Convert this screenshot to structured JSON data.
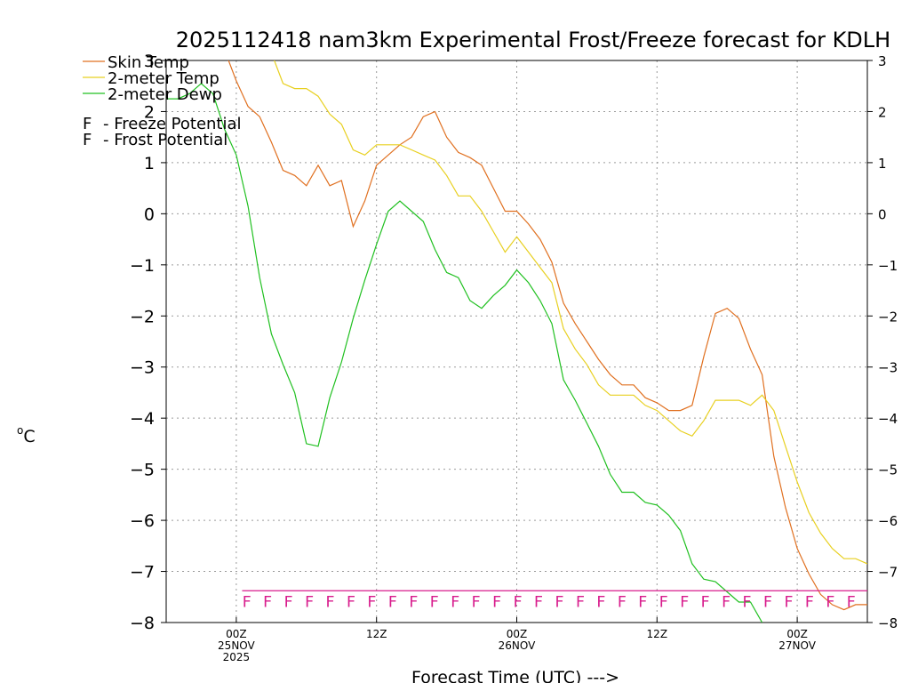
{
  "chart_data": {
    "type": "line",
    "title": "2025112418 nam3km Experimental Frost/Freeze forecast for KDLH",
    "ylabel": "oC",
    "xlabel": "Forecast Time (UTC) --->",
    "ylim": [
      -8,
      3
    ],
    "yticks": [
      -8,
      -7,
      -6,
      -5,
      -4,
      -3,
      -2,
      -1,
      0,
      1,
      2,
      3
    ],
    "xlim": [
      -6,
      54
    ],
    "xticks": [
      {
        "x": 0,
        "lines": [
          "00Z",
          "25NOV",
          "2025"
        ]
      },
      {
        "x": 12,
        "lines": [
          "12Z"
        ]
      },
      {
        "x": 24,
        "lines": [
          "00Z",
          "26NOV"
        ]
      },
      {
        "x": 36,
        "lines": [
          "12Z"
        ]
      },
      {
        "x": 48,
        "lines": [
          "00Z",
          "27NOV"
        ]
      }
    ],
    "series": [
      {
        "name": "Skin Temp",
        "color": "#e07020",
        "x": [
          -1,
          0,
          1,
          2,
          3,
          4,
          5,
          6,
          7,
          8,
          9,
          10,
          11,
          12,
          13,
          14,
          15,
          16,
          17,
          18,
          19,
          20,
          21,
          22,
          23,
          24,
          25,
          26,
          27,
          28,
          29,
          30,
          31,
          32,
          33,
          34,
          35,
          36,
          37,
          38,
          39,
          40,
          41,
          42,
          43,
          44,
          45,
          46,
          47,
          48,
          49,
          50,
          51,
          52,
          53,
          54
        ],
        "values": [
          3.2,
          2.6,
          2.1,
          1.9,
          1.4,
          0.85,
          0.75,
          0.55,
          0.95,
          0.55,
          0.65,
          -0.25,
          0.25,
          0.95,
          1.15,
          1.35,
          1.5,
          1.9,
          2.0,
          1.5,
          1.2,
          1.1,
          0.95,
          0.5,
          0.05,
          0.05,
          -0.2,
          -0.5,
          -0.95,
          -1.75,
          -2.15,
          -2.5,
          -2.85,
          -3.15,
          -3.35,
          -3.35,
          -3.6,
          -3.7,
          -3.85,
          -3.85,
          -3.75,
          -2.8,
          -1.95,
          -1.85,
          -2.05,
          -2.65,
          -3.15,
          -4.75,
          -5.75,
          -6.55,
          -7.05,
          -7.45,
          -7.65,
          -7.75,
          -7.65,
          -7.65
        ]
      },
      {
        "name": "2-meter Temp",
        "color": "#e8d020",
        "x": [
          2,
          3,
          4,
          5,
          6,
          7,
          8,
          9,
          10,
          11,
          12,
          13,
          14,
          15,
          16,
          17,
          18,
          19,
          20,
          21,
          22,
          23,
          24,
          25,
          26,
          27,
          28,
          29,
          30,
          31,
          32,
          33,
          34,
          35,
          36,
          37,
          38,
          39,
          40,
          41,
          42,
          43,
          44,
          45,
          46,
          47,
          48,
          49,
          50,
          51,
          52,
          53,
          54
        ],
        "values": [
          3.55,
          3.15,
          2.55,
          2.45,
          2.45,
          2.3,
          1.95,
          1.75,
          1.25,
          1.15,
          1.35,
          1.35,
          1.35,
          1.25,
          1.15,
          1.05,
          0.75,
          0.35,
          0.35,
          0.05,
          -0.35,
          -0.75,
          -0.45,
          -0.75,
          -1.05,
          -1.35,
          -2.25,
          -2.65,
          -2.95,
          -3.35,
          -3.55,
          -3.55,
          -3.55,
          -3.75,
          -3.85,
          -4.05,
          -4.25,
          -4.35,
          -4.05,
          -3.65,
          -3.65,
          -3.65,
          -3.75,
          -3.55,
          -3.85,
          -4.55,
          -5.25,
          -5.85,
          -6.25,
          -6.55,
          -6.75,
          -6.75,
          -6.85
        ]
      },
      {
        "name": "2-meter Dewp",
        "color": "#20c020",
        "x": [
          -6,
          -5,
          -4,
          -3,
          -2,
          -1,
          0,
          1,
          2,
          3,
          4,
          5,
          6,
          7,
          8,
          9,
          10,
          11,
          12,
          13,
          14,
          15,
          16,
          17,
          18,
          19,
          20,
          21,
          22,
          23,
          24,
          25,
          26,
          27,
          28,
          29,
          30,
          31,
          32,
          33,
          34,
          35,
          36,
          37,
          38,
          39,
          40,
          41,
          42,
          43,
          44,
          45
        ],
        "values": [
          2.25,
          2.25,
          2.35,
          2.55,
          2.35,
          1.65,
          1.15,
          0.15,
          -1.25,
          -2.35,
          -2.95,
          -3.5,
          -4.5,
          -4.55,
          -3.6,
          -2.9,
          -2.05,
          -1.3,
          -0.6,
          0.05,
          0.25,
          0.05,
          -0.15,
          -0.7,
          -1.15,
          -1.25,
          -1.7,
          -1.85,
          -1.6,
          -1.4,
          -1.1,
          -1.35,
          -1.7,
          -2.15,
          -3.25,
          -3.65,
          -4.1,
          -4.55,
          -5.1,
          -5.45,
          -5.45,
          -5.65,
          -5.7,
          -5.9,
          -6.2,
          -6.85,
          -7.15,
          -7.2,
          -7.4,
          -7.6,
          -7.6,
          -8.0
        ]
      }
    ],
    "freeze_flags": {
      "marker": "F",
      "color": "#d81b8c",
      "x_start": 0.5,
      "x_end": 54,
      "y": -7.5,
      "count": 30
    },
    "legend": {
      "placement": "top-left",
      "entries": [
        "Skin Temp",
        "2-meter Temp",
        "2-meter Dewp"
      ],
      "notes": [
        {
          "marker": "F",
          "text": "- Freeze Potential",
          "color": "#d81b8c"
        },
        {
          "marker": "F",
          "text": "- Frost Potential",
          "color": "#5050e0"
        }
      ]
    }
  }
}
